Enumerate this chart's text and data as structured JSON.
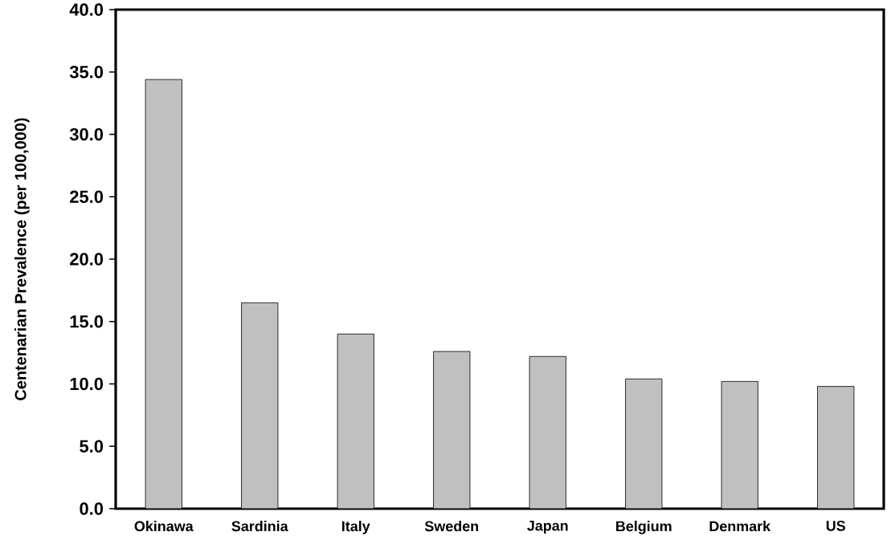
{
  "chart_data": {
    "type": "bar",
    "ylabel": "Centenarian Prevalence (per 100,000)",
    "categories": [
      "Okinawa",
      "Sardinia",
      "Italy",
      "Sweden",
      "Japan",
      "Belgium",
      "Denmark",
      "US"
    ],
    "values": [
      34.4,
      16.5,
      14.0,
      12.6,
      12.2,
      10.4,
      10.2,
      9.8
    ],
    "color": "#c0c0c0",
    "ylim": [
      0,
      40
    ],
    "yticks": [
      {
        "value": 0,
        "label": "0.0"
      },
      {
        "value": 5,
        "label": "5.0"
      },
      {
        "value": 10,
        "label": "10.0"
      },
      {
        "value": 15,
        "label": "15.0"
      },
      {
        "value": 20,
        "label": "20.0"
      },
      {
        "value": 25,
        "label": "25.0"
      },
      {
        "value": 30,
        "label": "30.0"
      },
      {
        "value": 35,
        "label": "35.0"
      },
      {
        "value": 40,
        "label": "40.0"
      }
    ],
    "grid": false
  }
}
